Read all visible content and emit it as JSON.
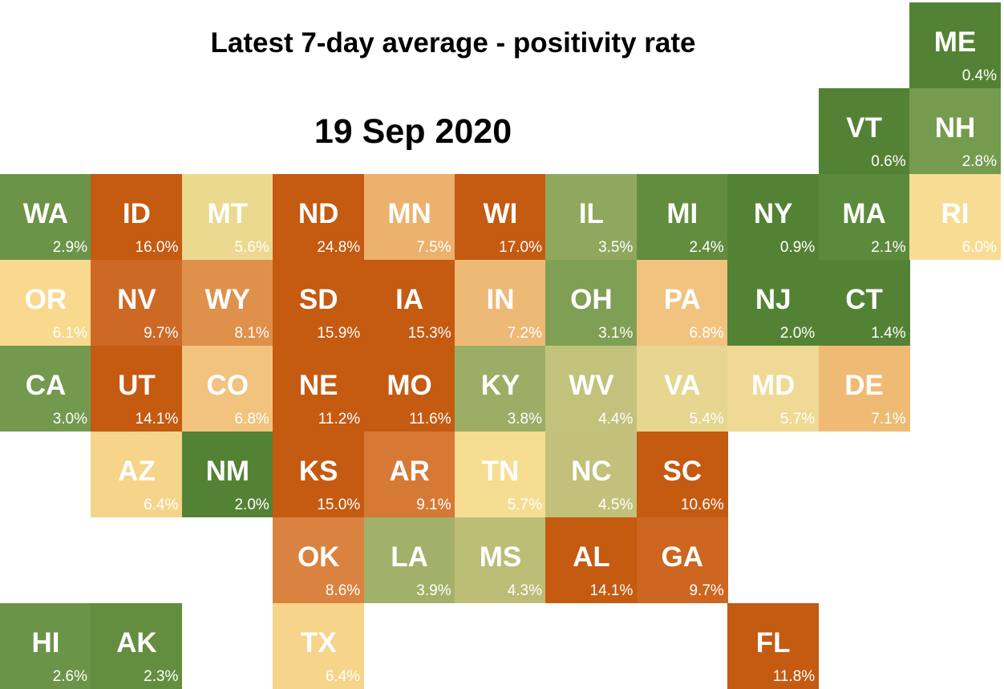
{
  "header": {
    "title": "Latest 7-day average - positivity rate",
    "date": "19 Sep 2020"
  },
  "states": [
    {
      "abbr": "ME",
      "rate": "0.4%",
      "color": "#548235"
    },
    {
      "abbr": "VT",
      "rate": "0.6%",
      "color": "#548235"
    },
    {
      "abbr": "NH",
      "rate": "2.8%",
      "color": "#759b4e"
    },
    {
      "abbr": "WA",
      "rate": "2.9%",
      "color": "#6b9448"
    },
    {
      "abbr": "ID",
      "rate": "16.0%",
      "color": "#c55a11"
    },
    {
      "abbr": "MT",
      "rate": "5.6%",
      "color": "#ead98f"
    },
    {
      "abbr": "ND",
      "rate": "24.8%",
      "color": "#c55a11"
    },
    {
      "abbr": "MN",
      "rate": "7.5%",
      "color": "#ecb16c"
    },
    {
      "abbr": "WI",
      "rate": "17.0%",
      "color": "#c55a11"
    },
    {
      "abbr": "IL",
      "rate": "3.5%",
      "color": "#90a85e"
    },
    {
      "abbr": "MI",
      "rate": "2.4%",
      "color": "#628d3f"
    },
    {
      "abbr": "NY",
      "rate": "0.9%",
      "color": "#548235"
    },
    {
      "abbr": "MA",
      "rate": "2.1%",
      "color": "#5c8a3c"
    },
    {
      "abbr": "RI",
      "rate": "6.0%",
      "color": "#f7dd94"
    },
    {
      "abbr": "OR",
      "rate": "6.1%",
      "color": "#f8d98e"
    },
    {
      "abbr": "NV",
      "rate": "9.7%",
      "color": "#cd6924"
    },
    {
      "abbr": "WY",
      "rate": "8.1%",
      "color": "#df904b"
    },
    {
      "abbr": "SD",
      "rate": "15.9%",
      "color": "#c55a11"
    },
    {
      "abbr": "IA",
      "rate": "15.3%",
      "color": "#c55a11"
    },
    {
      "abbr": "IN",
      "rate": "7.2%",
      "color": "#edb977"
    },
    {
      "abbr": "OH",
      "rate": "3.1%",
      "color": "#7f9f55"
    },
    {
      "abbr": "PA",
      "rate": "6.8%",
      "color": "#f1c37f"
    },
    {
      "abbr": "NJ",
      "rate": "2.0%",
      "color": "#548235"
    },
    {
      "abbr": "CT",
      "rate": "1.4%",
      "color": "#548235"
    },
    {
      "abbr": "CA",
      "rate": "3.0%",
      "color": "#73994f"
    },
    {
      "abbr": "UT",
      "rate": "14.1%",
      "color": "#c55a11"
    },
    {
      "abbr": "CO",
      "rate": "6.8%",
      "color": "#f1c37f"
    },
    {
      "abbr": "NE",
      "rate": "11.2%",
      "color": "#c55a11"
    },
    {
      "abbr": "MO",
      "rate": "11.6%",
      "color": "#c55a11"
    },
    {
      "abbr": "KY",
      "rate": "3.8%",
      "color": "#9cad66"
    },
    {
      "abbr": "WV",
      "rate": "4.4%",
      "color": "#c3c27d"
    },
    {
      "abbr": "VA",
      "rate": "5.4%",
      "color": "#e6d690"
    },
    {
      "abbr": "MD",
      "rate": "5.7%",
      "color": "#efd994"
    },
    {
      "abbr": "DE",
      "rate": "7.1%",
      "color": "#efbb74"
    },
    {
      "abbr": "AZ",
      "rate": "6.4%",
      "color": "#f6d48a"
    },
    {
      "abbr": "NM",
      "rate": "2.0%",
      "color": "#548235"
    },
    {
      "abbr": "KS",
      "rate": "15.0%",
      "color": "#c55a11"
    },
    {
      "abbr": "AR",
      "rate": "9.1%",
      "color": "#d67935"
    },
    {
      "abbr": "TN",
      "rate": "5.7%",
      "color": "#f5dd92"
    },
    {
      "abbr": "NC",
      "rate": "4.5%",
      "color": "#c2c07a"
    },
    {
      "abbr": "SC",
      "rate": "10.6%",
      "color": "#c55a11"
    },
    {
      "abbr": "OK",
      "rate": "8.6%",
      "color": "#da8240"
    },
    {
      "abbr": "LA",
      "rate": "3.9%",
      "color": "#a2b169"
    },
    {
      "abbr": "MS",
      "rate": "4.3%",
      "color": "#bcbd76"
    },
    {
      "abbr": "AL",
      "rate": "14.1%",
      "color": "#c55a11"
    },
    {
      "abbr": "GA",
      "rate": "9.7%",
      "color": "#cc6620"
    },
    {
      "abbr": "HI",
      "rate": "2.6%",
      "color": "#6b9448"
    },
    {
      "abbr": "AK",
      "rate": "2.3%",
      "color": "#638e40"
    },
    {
      "abbr": "TX",
      "rate": "6.4%",
      "color": "#f6d48a"
    },
    {
      "abbr": "FL",
      "rate": "11.8%",
      "color": "#c55a11"
    }
  ]
}
